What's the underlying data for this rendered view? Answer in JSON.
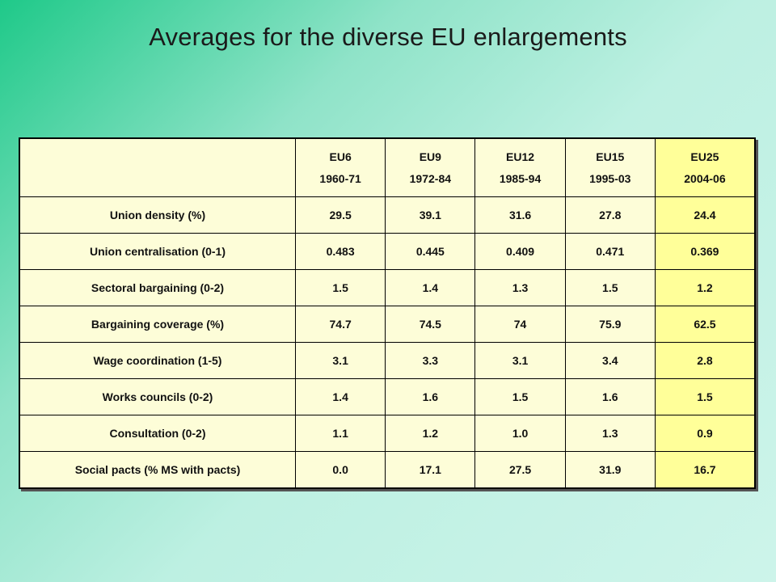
{
  "title": "Averages for the diverse EU enlargements",
  "table": {
    "columns": [
      {
        "name": "EU6",
        "period": "1960-71"
      },
      {
        "name": "EU9",
        "period": "1972-84"
      },
      {
        "name": "EU12",
        "period": "1985-94"
      },
      {
        "name": "EU15",
        "period": "1995-03"
      },
      {
        "name": "EU25",
        "period": "2004-06"
      }
    ],
    "rows": [
      {
        "label": "Union density (%)",
        "values": [
          "29.5",
          "39.1",
          "31.6",
          "27.8",
          "24.4"
        ]
      },
      {
        "label": "Union centralisation (0-1)",
        "values": [
          "0.483",
          "0.445",
          "0.409",
          "0.471",
          "0.369"
        ]
      },
      {
        "label": "Sectoral bargaining (0-2)",
        "values": [
          "1.5",
          "1.4",
          "1.3",
          "1.5",
          "1.2"
        ]
      },
      {
        "label": "Bargaining coverage (%)",
        "values": [
          "74.7",
          "74.5",
          "74",
          "75.9",
          "62.5"
        ]
      },
      {
        "label": "Wage coordination (1-5)",
        "values": [
          "3.1",
          "3.3",
          "3.1",
          "3.4",
          "2.8"
        ]
      },
      {
        "label": "Works councils (0-2)",
        "values": [
          "1.4",
          "1.6",
          "1.5",
          "1.6",
          "1.5"
        ]
      },
      {
        "label": "Consultation (0-2)",
        "values": [
          "1.1",
          "1.2",
          "1.0",
          "1.3",
          "0.9"
        ]
      },
      {
        "label": "Social pacts (% MS with pacts)",
        "values": [
          "0.0",
          "17.1",
          "27.5",
          "31.9",
          "16.7"
        ]
      }
    ]
  },
  "colors": {
    "cell_background": "#fdfdd8",
    "highlight_column": "#ffff99",
    "gradient_start": "#1fc989",
    "gradient_end": "#cdf4ea"
  }
}
